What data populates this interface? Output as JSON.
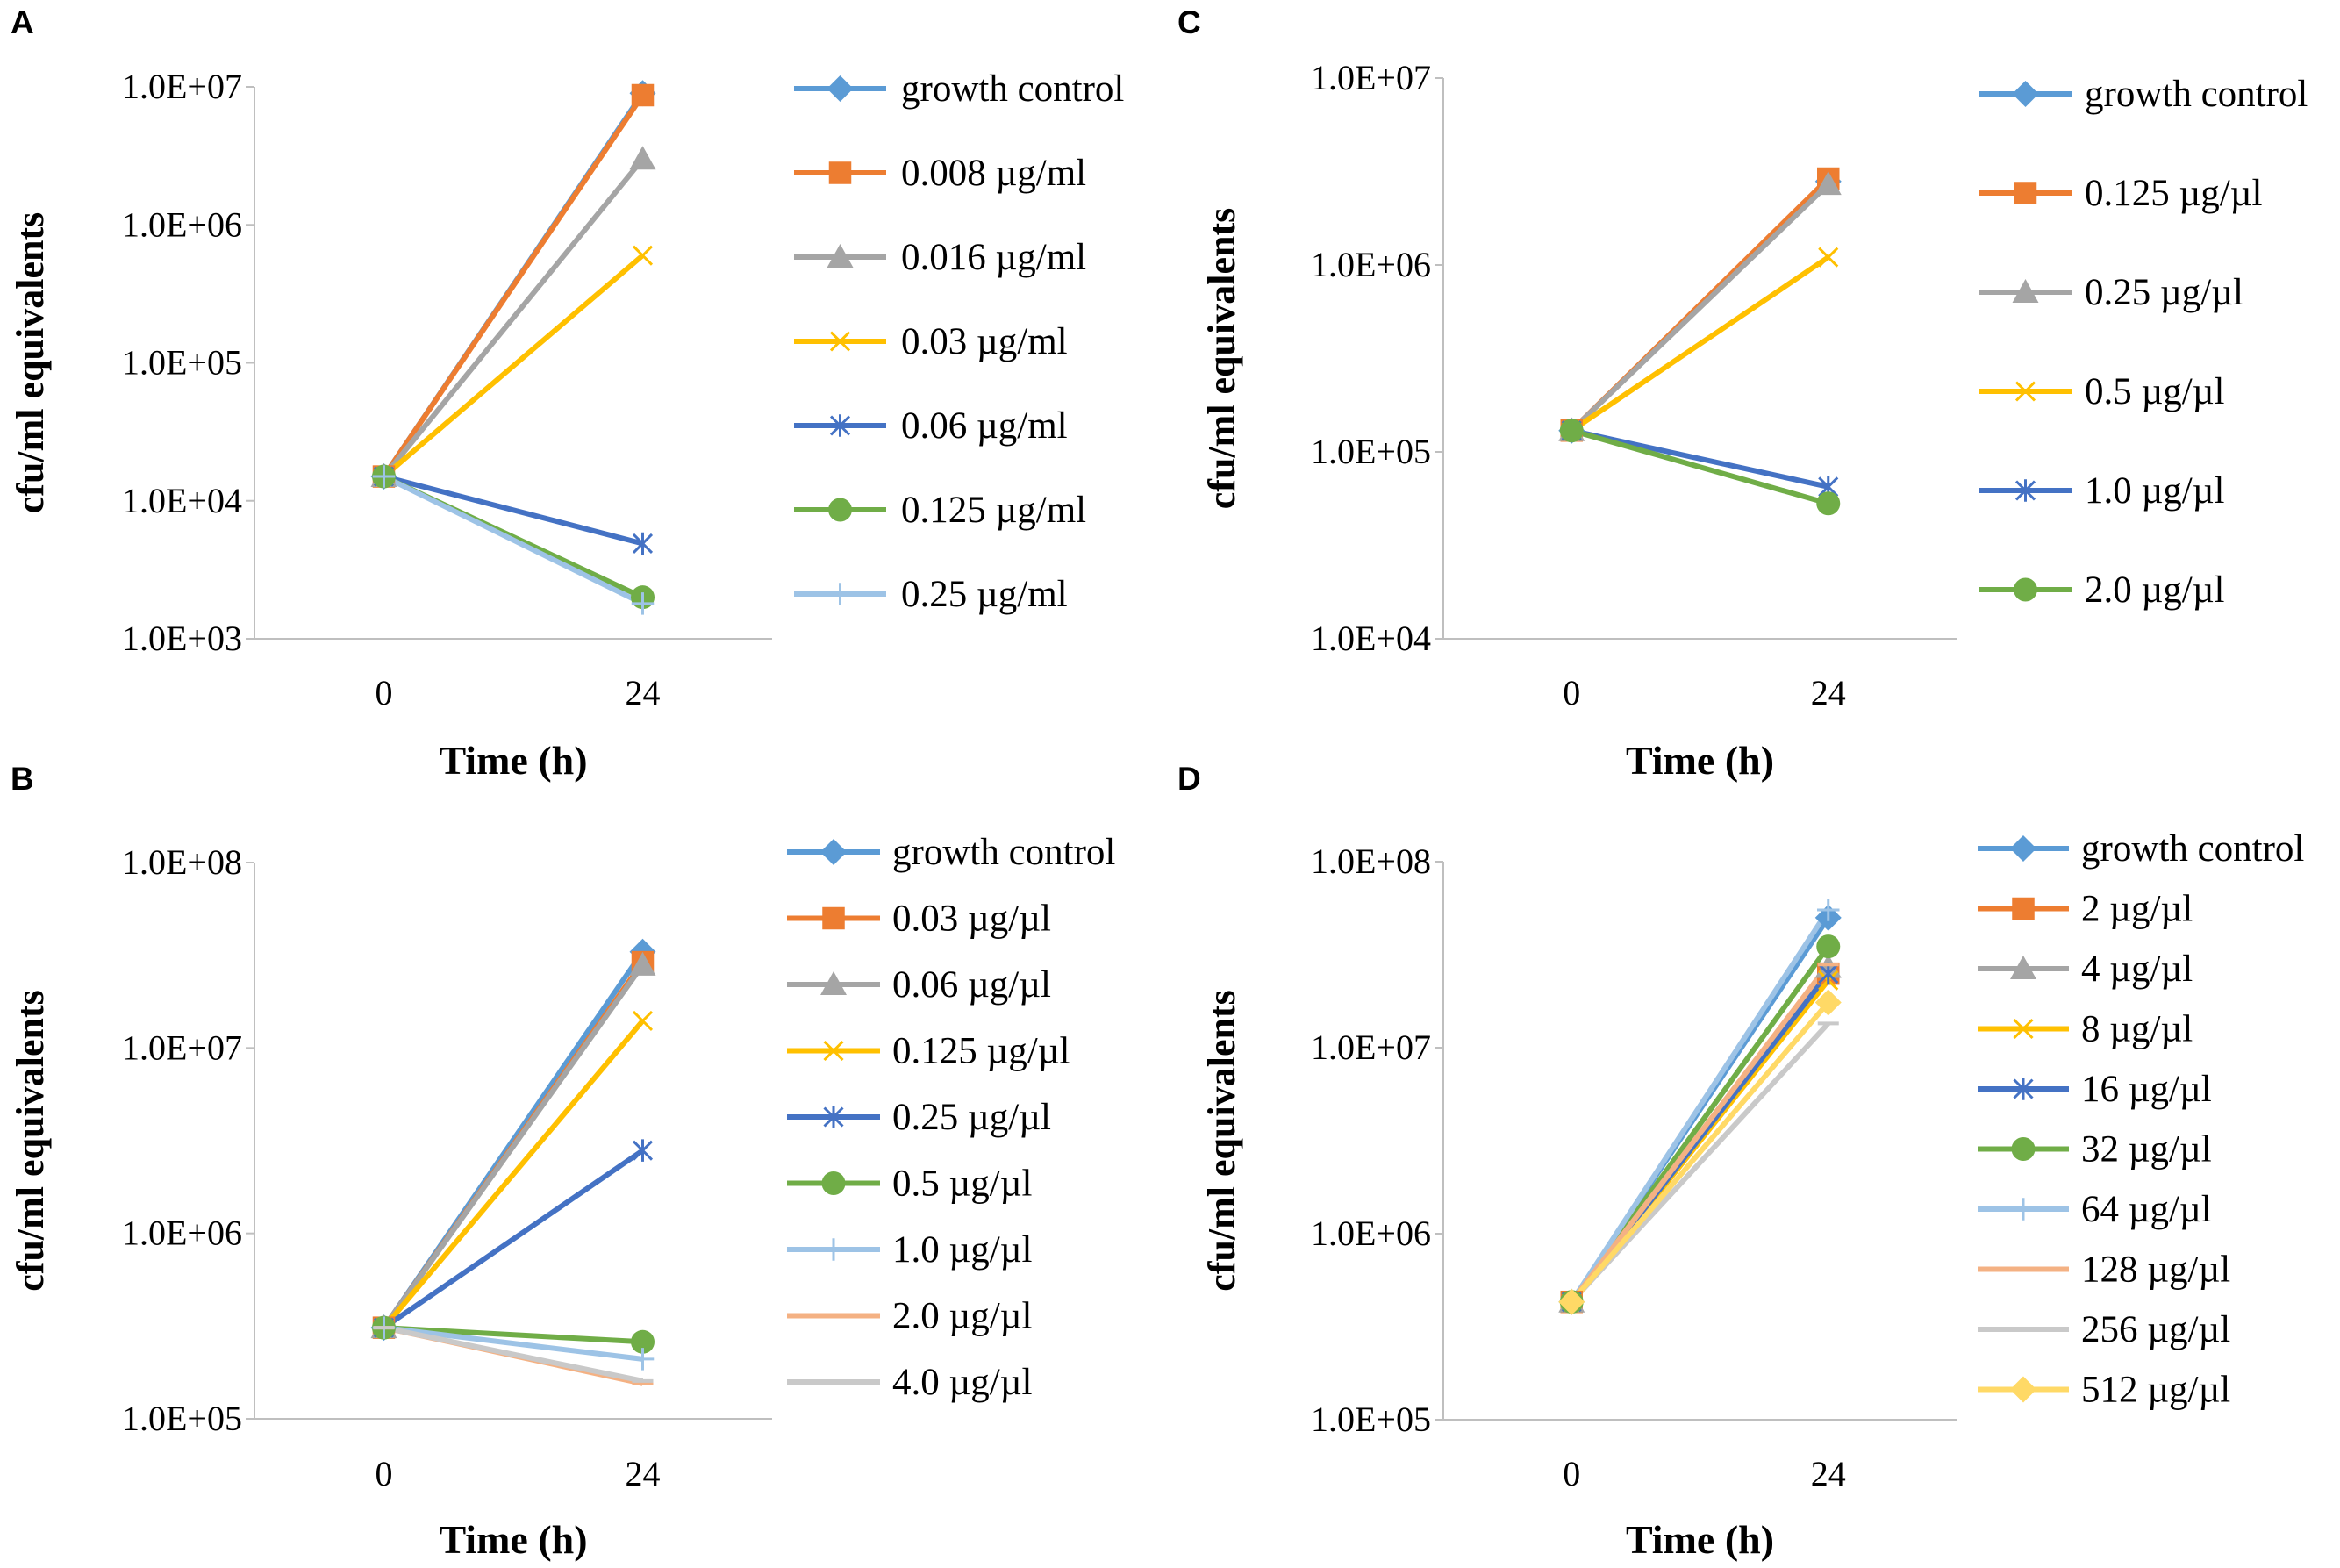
{
  "colors": {
    "axis": "#bfbfbf",
    "growth_control": "#5b9bd5",
    "orange": "#ed7d31",
    "gray": "#a5a5a5",
    "gold": "#ffc000",
    "darkblue": "#4472c4",
    "green": "#70ad47",
    "lightblue": "#9dc3e6",
    "salmon": "#f4b183",
    "lightgray": "#c9c9c9",
    "peach": "#ffd966"
  },
  "chart_data": [
    {
      "panel": "A",
      "type": "line",
      "yscale": "log",
      "ylim": [
        1000,
        10000000
      ],
      "ytick_labels": [
        "1.0E+03",
        "1.0E+04",
        "1.0E+05",
        "1.0E+06",
        "1.0E+07"
      ],
      "xlabel": "Time (h)",
      "ylabel": "cfu/ml equivalents",
      "categories": [
        "0",
        "24"
      ],
      "legend_position": "right",
      "series": [
        {
          "name": "growth control",
          "marker": "diamond",
          "color": "#5b9bd5",
          "values": [
            15000,
            9000000
          ]
        },
        {
          "name": "0.008 µg/ml",
          "marker": "square",
          "color": "#ed7d31",
          "values": [
            15000,
            8700000
          ]
        },
        {
          "name": "0.016 µg/ml",
          "marker": "triangle",
          "color": "#a5a5a5",
          "values": [
            15000,
            3000000
          ]
        },
        {
          "name": "0.03 µg/ml",
          "marker": "x",
          "color": "#ffc000",
          "values": [
            15000,
            600000
          ]
        },
        {
          "name": "0.06 µg/ml",
          "marker": "star",
          "color": "#4472c4",
          "values": [
            15000,
            4900
          ]
        },
        {
          "name": "0.125 µg/ml",
          "marker": "circle",
          "color": "#70ad47",
          "values": [
            15000,
            2000
          ]
        },
        {
          "name": "0.25 µg/ml",
          "marker": "plus",
          "color": "#9dc3e6",
          "values": [
            15000,
            1800
          ]
        }
      ]
    },
    {
      "panel": "B",
      "type": "line",
      "yscale": "log",
      "ylim": [
        100000,
        100000000
      ],
      "ytick_labels": [
        "1.0E+05",
        "1.0E+06",
        "1.0E+07",
        "1.0E+08"
      ],
      "xlabel": "Time (h)",
      "ylabel": "cfu/ml equivalents",
      "categories": [
        "0",
        "24"
      ],
      "legend_position": "right",
      "series": [
        {
          "name": "growth control",
          "marker": "diamond",
          "color": "#5b9bd5",
          "values": [
            310000,
            33000000
          ]
        },
        {
          "name": "0.03 µg/µl",
          "marker": "square",
          "color": "#ed7d31",
          "values": [
            310000,
            29000000
          ]
        },
        {
          "name": "0.06 µg/µl",
          "marker": "triangle",
          "color": "#a5a5a5",
          "values": [
            310000,
            28000000
          ]
        },
        {
          "name": "0.125 µg/µl",
          "marker": "x",
          "color": "#ffc000",
          "values": [
            310000,
            14000000
          ]
        },
        {
          "name": "0.25 µg/µl",
          "marker": "star",
          "color": "#4472c4",
          "values": [
            310000,
            2800000
          ]
        },
        {
          "name": "0.5 µg/µl",
          "marker": "circle",
          "color": "#70ad47",
          "values": [
            310000,
            260000
          ]
        },
        {
          "name": "1.0 µg/µl",
          "marker": "plus",
          "color": "#9dc3e6",
          "values": [
            310000,
            210000
          ]
        },
        {
          "name": "2.0 µg/µl",
          "marker": "dash",
          "color": "#f4b183",
          "values": [
            310000,
            155000
          ]
        },
        {
          "name": "4.0 µg/µl",
          "marker": "dash",
          "color": "#c9c9c9",
          "values": [
            310000,
            160000
          ]
        }
      ]
    },
    {
      "panel": "C",
      "type": "line",
      "yscale": "log",
      "ylim": [
        10000,
        10000000
      ],
      "ytick_labels": [
        "1.0E+04",
        "1.0E+05",
        "1.0E+06",
        "1.0E+07"
      ],
      "xlabel": "Time (h)",
      "ylabel": "cfu/ml equivalents",
      "categories": [
        "0",
        "24"
      ],
      "legend_position": "right",
      "series": [
        {
          "name": "growth control",
          "marker": "diamond",
          "color": "#5b9bd5",
          "values": [
            130000,
            2800000
          ]
        },
        {
          "name": "0.125 µg/µl",
          "marker": "square",
          "color": "#ed7d31",
          "values": [
            130000,
            2900000
          ]
        },
        {
          "name": "0.25 µg/µl",
          "marker": "triangle",
          "color": "#a5a5a5",
          "values": [
            130000,
            2700000
          ]
        },
        {
          "name": "0.5 µg/µl",
          "marker": "x",
          "color": "#ffc000",
          "values": [
            130000,
            1100000
          ]
        },
        {
          "name": "1.0 µg/µl",
          "marker": "star",
          "color": "#4472c4",
          "values": [
            130000,
            65000
          ]
        },
        {
          "name": "2.0 µg/µl",
          "marker": "circle",
          "color": "#70ad47",
          "values": [
            130000,
            53000
          ]
        }
      ]
    },
    {
      "panel": "D",
      "type": "line",
      "yscale": "log",
      "ylim": [
        100000,
        100000000
      ],
      "ytick_labels": [
        "1.0E+05",
        "1.0E+06",
        "1.0E+07",
        "1.0E+08"
      ],
      "xlabel": "Time (h)",
      "ylabel": "cfu/ml equivalents",
      "categories": [
        "0",
        "24"
      ],
      "legend_position": "right",
      "series": [
        {
          "name": "growth control",
          "marker": "diamond",
          "color": "#5b9bd5",
          "values": [
            430000,
            50000000
          ]
        },
        {
          "name": "2 µg/µl",
          "marker": "square",
          "color": "#ed7d31",
          "values": [
            430000,
            25000000
          ]
        },
        {
          "name": "4 µg/µl",
          "marker": "triangle",
          "color": "#a5a5a5",
          "values": [
            430000,
            27000000
          ]
        },
        {
          "name": "8 µg/µl",
          "marker": "x",
          "color": "#ffc000",
          "values": [
            430000,
            23000000
          ]
        },
        {
          "name": "16 µg/µl",
          "marker": "star",
          "color": "#4472c4",
          "values": [
            430000,
            25000000
          ]
        },
        {
          "name": "32 µg/µl",
          "marker": "circle",
          "color": "#70ad47",
          "values": [
            430000,
            35000000
          ]
        },
        {
          "name": "64 µg/µl",
          "marker": "plus",
          "color": "#9dc3e6",
          "values": [
            430000,
            55000000
          ]
        },
        {
          "name": "128 µg/µl",
          "marker": "dash",
          "color": "#f4b183",
          "values": [
            430000,
            28000000
          ]
        },
        {
          "name": "256 µg/µl",
          "marker": "dash",
          "color": "#c9c9c9",
          "values": [
            430000,
            13500000
          ]
        },
        {
          "name": "512 µg/µl",
          "marker": "diamond",
          "color": "#ffd966",
          "values": [
            430000,
            17500000
          ]
        }
      ]
    }
  ]
}
